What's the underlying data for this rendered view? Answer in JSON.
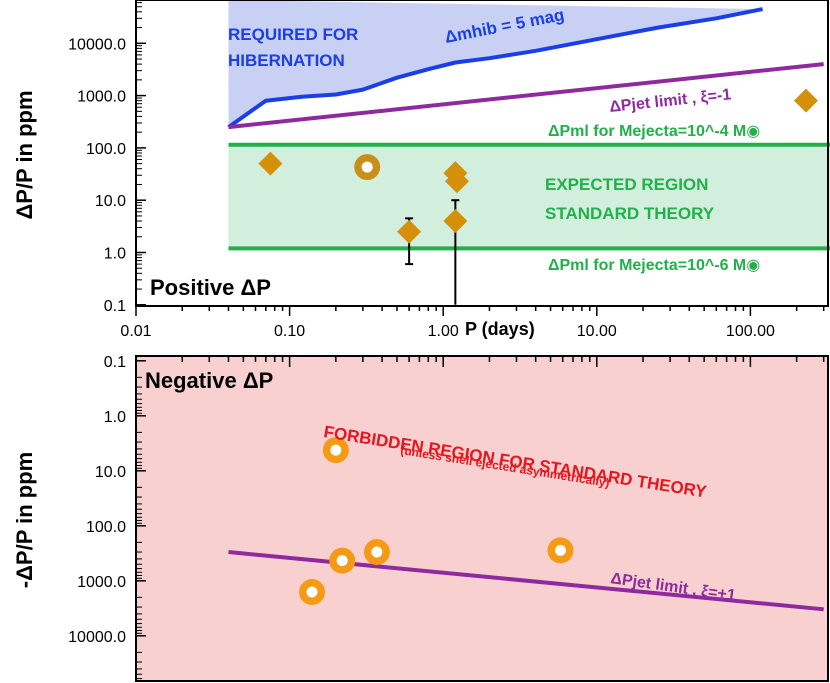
{
  "chart_data": [
    {
      "panel": "top",
      "type": "scatter",
      "xscale": "log",
      "yscale": "log",
      "xlim": [
        0.01,
        300
      ],
      "ylim": [
        0.1,
        50000
      ],
      "ylabel": "ΔP/P  in ppm",
      "xlabel": "P (days)",
      "x_ticks": [
        "0.01",
        "0.10",
        "1.00",
        "10.00",
        "100.00"
      ],
      "y_ticks": [
        "10000.0",
        "1000.0",
        "100.0",
        "10.0",
        "1.0",
        "0.1"
      ],
      "corner_label": "Positive ΔP",
      "regions": {
        "hibernation": {
          "label_line1": "REQUIRED FOR",
          "label_line2": "HIBERNATION",
          "fill": "#c8d0f4"
        },
        "expected": {
          "label_line1": "EXPECTED REGION",
          "label_line2": "STANDARD THEORY",
          "fill": "#d2efdd",
          "y_low": 1.2,
          "y_high": 115
        }
      },
      "lines": {
        "hib": {
          "label": "Δmhib = 5 mag",
          "color": "#1a3fe6",
          "x": [
            0.04,
            0.07,
            0.12,
            0.2,
            0.3,
            0.5,
            0.8,
            1.2,
            2.0,
            4.0,
            10,
            25,
            60,
            120
          ],
          "y": [
            250,
            800,
            950,
            1050,
            1300,
            2200,
            3200,
            4300,
            5200,
            7200,
            12000,
            20000,
            30000,
            45000
          ]
        },
        "jet_top": {
          "label": "ΔPjet limit , ξ=-1",
          "color": "#8e2a9e",
          "x": [
            0.04,
            300
          ],
          "y": [
            250,
            4000
          ]
        },
        "ml_high": {
          "label": "ΔPml for Mejecta=10^-4 M◉",
          "color": "#22b04a",
          "y": 115
        },
        "ml_low": {
          "label": "ΔPml for Mejecta=10^-6 M◉",
          "color": "#22b04a",
          "y": 1.2
        }
      },
      "points": [
        {
          "x": 0.075,
          "y": 50,
          "marker": "diamond"
        },
        {
          "x": 0.32,
          "y": 43,
          "marker": "ring"
        },
        {
          "x": 0.6,
          "y": 2.5,
          "marker": "diamond",
          "err_low": 0.6,
          "err_high": 4.5
        },
        {
          "x": 1.2,
          "y": 33,
          "marker": "diamond"
        },
        {
          "x": 1.23,
          "y": 23,
          "marker": "diamond"
        },
        {
          "x": 1.2,
          "y": 4,
          "marker": "diamond",
          "err_low": 0.1,
          "err_high": 10
        },
        {
          "x": 230,
          "y": 800,
          "marker": "diamond"
        }
      ],
      "point_colors": {
        "diamond": "#d4900a",
        "ring": "#c8901a",
        "ring_center": "#ffffff"
      }
    },
    {
      "panel": "bottom",
      "type": "scatter",
      "xscale": "log",
      "yscale": "log",
      "yaxis_inverted": true,
      "xlim": [
        0.01,
        300
      ],
      "ylim": [
        0.1,
        50000
      ],
      "ylabel": "-ΔP/P  in ppm",
      "y_ticks": [
        "0.1",
        "1.0",
        "10.0",
        "100.0",
        "1000.0",
        "10000.0"
      ],
      "corner_label": "Negative ΔP",
      "background": "#f9d0d0",
      "forbidden_line1": "FORBIDDEN REGION FOR STANDARD THEORY",
      "forbidden_line2": "(unless shell ejected asymmetrically)",
      "forbidden_color": "#e8141e",
      "jet_bottom": {
        "label": "ΔPjet  limit , ξ=+1",
        "color": "#8e2a9e",
        "x": [
          0.04,
          300
        ],
        "y": [
          300,
          3300
        ]
      },
      "points": [
        {
          "x": 0.2,
          "y": 4.2,
          "marker": "ring"
        },
        {
          "x": 0.14,
          "y": 1600,
          "marker": "ring"
        },
        {
          "x": 0.22,
          "y": 430,
          "marker": "ring"
        },
        {
          "x": 0.37,
          "y": 300,
          "marker": "ring"
        },
        {
          "x": 5.8,
          "y": 280,
          "marker": "ring"
        }
      ],
      "point_colors": {
        "ring": "#f59a14",
        "ring_center": "#ffffff"
      }
    }
  ]
}
